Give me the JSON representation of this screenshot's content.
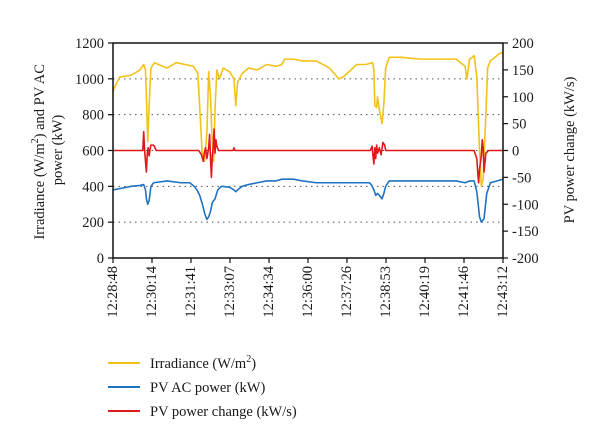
{
  "chart_data": {
    "type": "line",
    "title": "",
    "xlabel": "",
    "ylabel": "Irradiance (W/m²) and PV AC power (kW)",
    "ylabel_parts": {
      "line1_a": "Irradiance (W/m",
      "line1_sup": "2",
      "line1_b": ") and PV AC",
      "line2": "power (kW)"
    },
    "y2label": "PV power change (kW/s)",
    "ylim": [
      0,
      1200
    ],
    "yticks": [
      0,
      200,
      400,
      600,
      800,
      1000,
      1200
    ],
    "y2lim": [
      -200,
      200
    ],
    "y2ticks": [
      -200,
      -150,
      -100,
      -50,
      0,
      50,
      100,
      150,
      200
    ],
    "x_categories": [
      "12:28:48",
      "12:30:14",
      "12:31:41",
      "12:33:07",
      "12:34:34",
      "12:36:00",
      "12:37:26",
      "12:38:53",
      "12:40:19",
      "12:41:46",
      "12:43:12"
    ],
    "x_range_seconds": [
      0,
      864
    ],
    "gridlines": {
      "y": [
        200,
        400,
        600,
        800,
        1000
      ],
      "style": "dotted"
    },
    "legend_position": "bottom",
    "series": [
      {
        "name": "Irradiance (W/m²)",
        "legend_parts": {
          "a": "Irradiance (W/m",
          "sup": "2",
          "b": ")"
        },
        "axis": "left",
        "color": "#f2c21b",
        "points": [
          [
            0,
            930
          ],
          [
            5,
            960
          ],
          [
            15,
            1010
          ],
          [
            40,
            1020
          ],
          [
            60,
            1050
          ],
          [
            68,
            1080
          ],
          [
            72,
            1050
          ],
          [
            74,
            900
          ],
          [
            77,
            650
          ],
          [
            80,
            850
          ],
          [
            84,
            1060
          ],
          [
            92,
            1090
          ],
          [
            110,
            1070
          ],
          [
            120,
            1060
          ],
          [
            140,
            1090
          ],
          [
            160,
            1080
          ],
          [
            178,
            1070
          ],
          [
            188,
            1030
          ],
          [
            193,
            800
          ],
          [
            198,
            560
          ],
          [
            203,
            540
          ],
          [
            208,
            700
          ],
          [
            212,
            1040
          ],
          [
            216,
            900
          ],
          [
            219,
            700
          ],
          [
            223,
            540
          ],
          [
            226,
            830
          ],
          [
            230,
            1050
          ],
          [
            236,
            1000
          ],
          [
            244,
            1060
          ],
          [
            258,
            1040
          ],
          [
            268,
            1000
          ],
          [
            272,
            850
          ],
          [
            276,
            980
          ],
          [
            286,
            1030
          ],
          [
            300,
            1060
          ],
          [
            320,
            1050
          ],
          [
            340,
            1080
          ],
          [
            362,
            1070
          ],
          [
            374,
            1080
          ],
          [
            380,
            1110
          ],
          [
            400,
            1110
          ],
          [
            420,
            1100
          ],
          [
            450,
            1100
          ],
          [
            480,
            1060
          ],
          [
            500,
            1000
          ],
          [
            510,
            1010
          ],
          [
            540,
            1080
          ],
          [
            560,
            1080
          ],
          [
            575,
            1090
          ],
          [
            578,
            1050
          ],
          [
            580,
            850
          ],
          [
            584,
            840
          ],
          [
            586,
            900
          ],
          [
            590,
            830
          ],
          [
            596,
            750
          ],
          [
            600,
            860
          ],
          [
            604,
            1060
          ],
          [
            612,
            1120
          ],
          [
            640,
            1120
          ],
          [
            680,
            1110
          ],
          [
            720,
            1110
          ],
          [
            760,
            1110
          ],
          [
            780,
            1070
          ],
          [
            784,
            1000
          ],
          [
            790,
            1110
          ],
          [
            796,
            1120
          ],
          [
            800,
            1130
          ],
          [
            806,
            1010
          ],
          [
            812,
            600
          ],
          [
            816,
            400
          ],
          [
            820,
            440
          ],
          [
            826,
            800
          ],
          [
            830,
            1060
          ],
          [
            836,
            1100
          ],
          [
            846,
            1120
          ],
          [
            856,
            1140
          ],
          [
            864,
            1150
          ]
        ]
      },
      {
        "name": "PV AC power (kW)",
        "axis": "left",
        "color": "#1f73c4",
        "points": [
          [
            0,
            380
          ],
          [
            20,
            390
          ],
          [
            40,
            400
          ],
          [
            60,
            405
          ],
          [
            68,
            410
          ],
          [
            72,
            380
          ],
          [
            74,
            330
          ],
          [
            77,
            300
          ],
          [
            80,
            320
          ],
          [
            84,
            400
          ],
          [
            90,
            420
          ],
          [
            120,
            430
          ],
          [
            150,
            420
          ],
          [
            170,
            420
          ],
          [
            180,
            400
          ],
          [
            186,
            380
          ],
          [
            192,
            350
          ],
          [
            198,
            300
          ],
          [
            203,
            250
          ],
          [
            208,
            215
          ],
          [
            212,
            230
          ],
          [
            216,
            260
          ],
          [
            220,
            310
          ],
          [
            226,
            330
          ],
          [
            232,
            380
          ],
          [
            240,
            400
          ],
          [
            258,
            395
          ],
          [
            268,
            380
          ],
          [
            272,
            370
          ],
          [
            276,
            380
          ],
          [
            286,
            400
          ],
          [
            300,
            410
          ],
          [
            320,
            420
          ],
          [
            340,
            430
          ],
          [
            360,
            430
          ],
          [
            374,
            440
          ],
          [
            380,
            440
          ],
          [
            400,
            440
          ],
          [
            420,
            430
          ],
          [
            450,
            420
          ],
          [
            480,
            420
          ],
          [
            510,
            420
          ],
          [
            540,
            420
          ],
          [
            560,
            420
          ],
          [
            568,
            420
          ],
          [
            572,
            410
          ],
          [
            578,
            380
          ],
          [
            582,
            350
          ],
          [
            586,
            360
          ],
          [
            590,
            350
          ],
          [
            596,
            330
          ],
          [
            600,
            360
          ],
          [
            604,
            400
          ],
          [
            612,
            430
          ],
          [
            640,
            430
          ],
          [
            700,
            430
          ],
          [
            760,
            430
          ],
          [
            780,
            420
          ],
          [
            790,
            430
          ],
          [
            796,
            430
          ],
          [
            800,
            430
          ],
          [
            806,
            370
          ],
          [
            812,
            230
          ],
          [
            816,
            200
          ],
          [
            822,
            220
          ],
          [
            828,
            360
          ],
          [
            836,
            420
          ],
          [
            850,
            430
          ],
          [
            864,
            440
          ]
        ]
      },
      {
        "name": "PV power change (kW/s)",
        "axis": "right",
        "color": "#e0181c",
        "points": [
          [
            0,
            0
          ],
          [
            60,
            0
          ],
          [
            66,
            0
          ],
          [
            68,
            35
          ],
          [
            70,
            0
          ],
          [
            72,
            -20
          ],
          [
            74,
            -40
          ],
          [
            76,
            -5
          ],
          [
            78,
            5
          ],
          [
            80,
            -10
          ],
          [
            82,
            2
          ],
          [
            84,
            10
          ],
          [
            90,
            10
          ],
          [
            96,
            0
          ],
          [
            190,
            0
          ],
          [
            196,
            -8
          ],
          [
            200,
            -20
          ],
          [
            202,
            -5
          ],
          [
            205,
            5
          ],
          [
            208,
            -15
          ],
          [
            210,
            -5
          ],
          [
            212,
            5
          ],
          [
            214,
            30
          ],
          [
            216,
            -15
          ],
          [
            218,
            -50
          ],
          [
            220,
            -10
          ],
          [
            222,
            5
          ],
          [
            224,
            40
          ],
          [
            226,
            -5
          ],
          [
            228,
            20
          ],
          [
            230,
            8
          ],
          [
            234,
            0
          ],
          [
            266,
            0
          ],
          [
            268,
            5
          ],
          [
            270,
            0
          ],
          [
            570,
            0
          ],
          [
            574,
            8
          ],
          [
            576,
            -10
          ],
          [
            578,
            -25
          ],
          [
            580,
            5
          ],
          [
            582,
            -15
          ],
          [
            584,
            10
          ],
          [
            586,
            -5
          ],
          [
            590,
            5
          ],
          [
            594,
            -8
          ],
          [
            598,
            15
          ],
          [
            602,
            10
          ],
          [
            604,
            0
          ],
          [
            800,
            0
          ],
          [
            804,
            -10
          ],
          [
            806,
            -15
          ],
          [
            808,
            -40
          ],
          [
            810,
            -60
          ],
          [
            812,
            -35
          ],
          [
            816,
            -10
          ],
          [
            818,
            20
          ],
          [
            820,
            5
          ],
          [
            822,
            -40
          ],
          [
            826,
            -5
          ],
          [
            832,
            0
          ],
          [
            864,
            0
          ]
        ]
      }
    ]
  }
}
